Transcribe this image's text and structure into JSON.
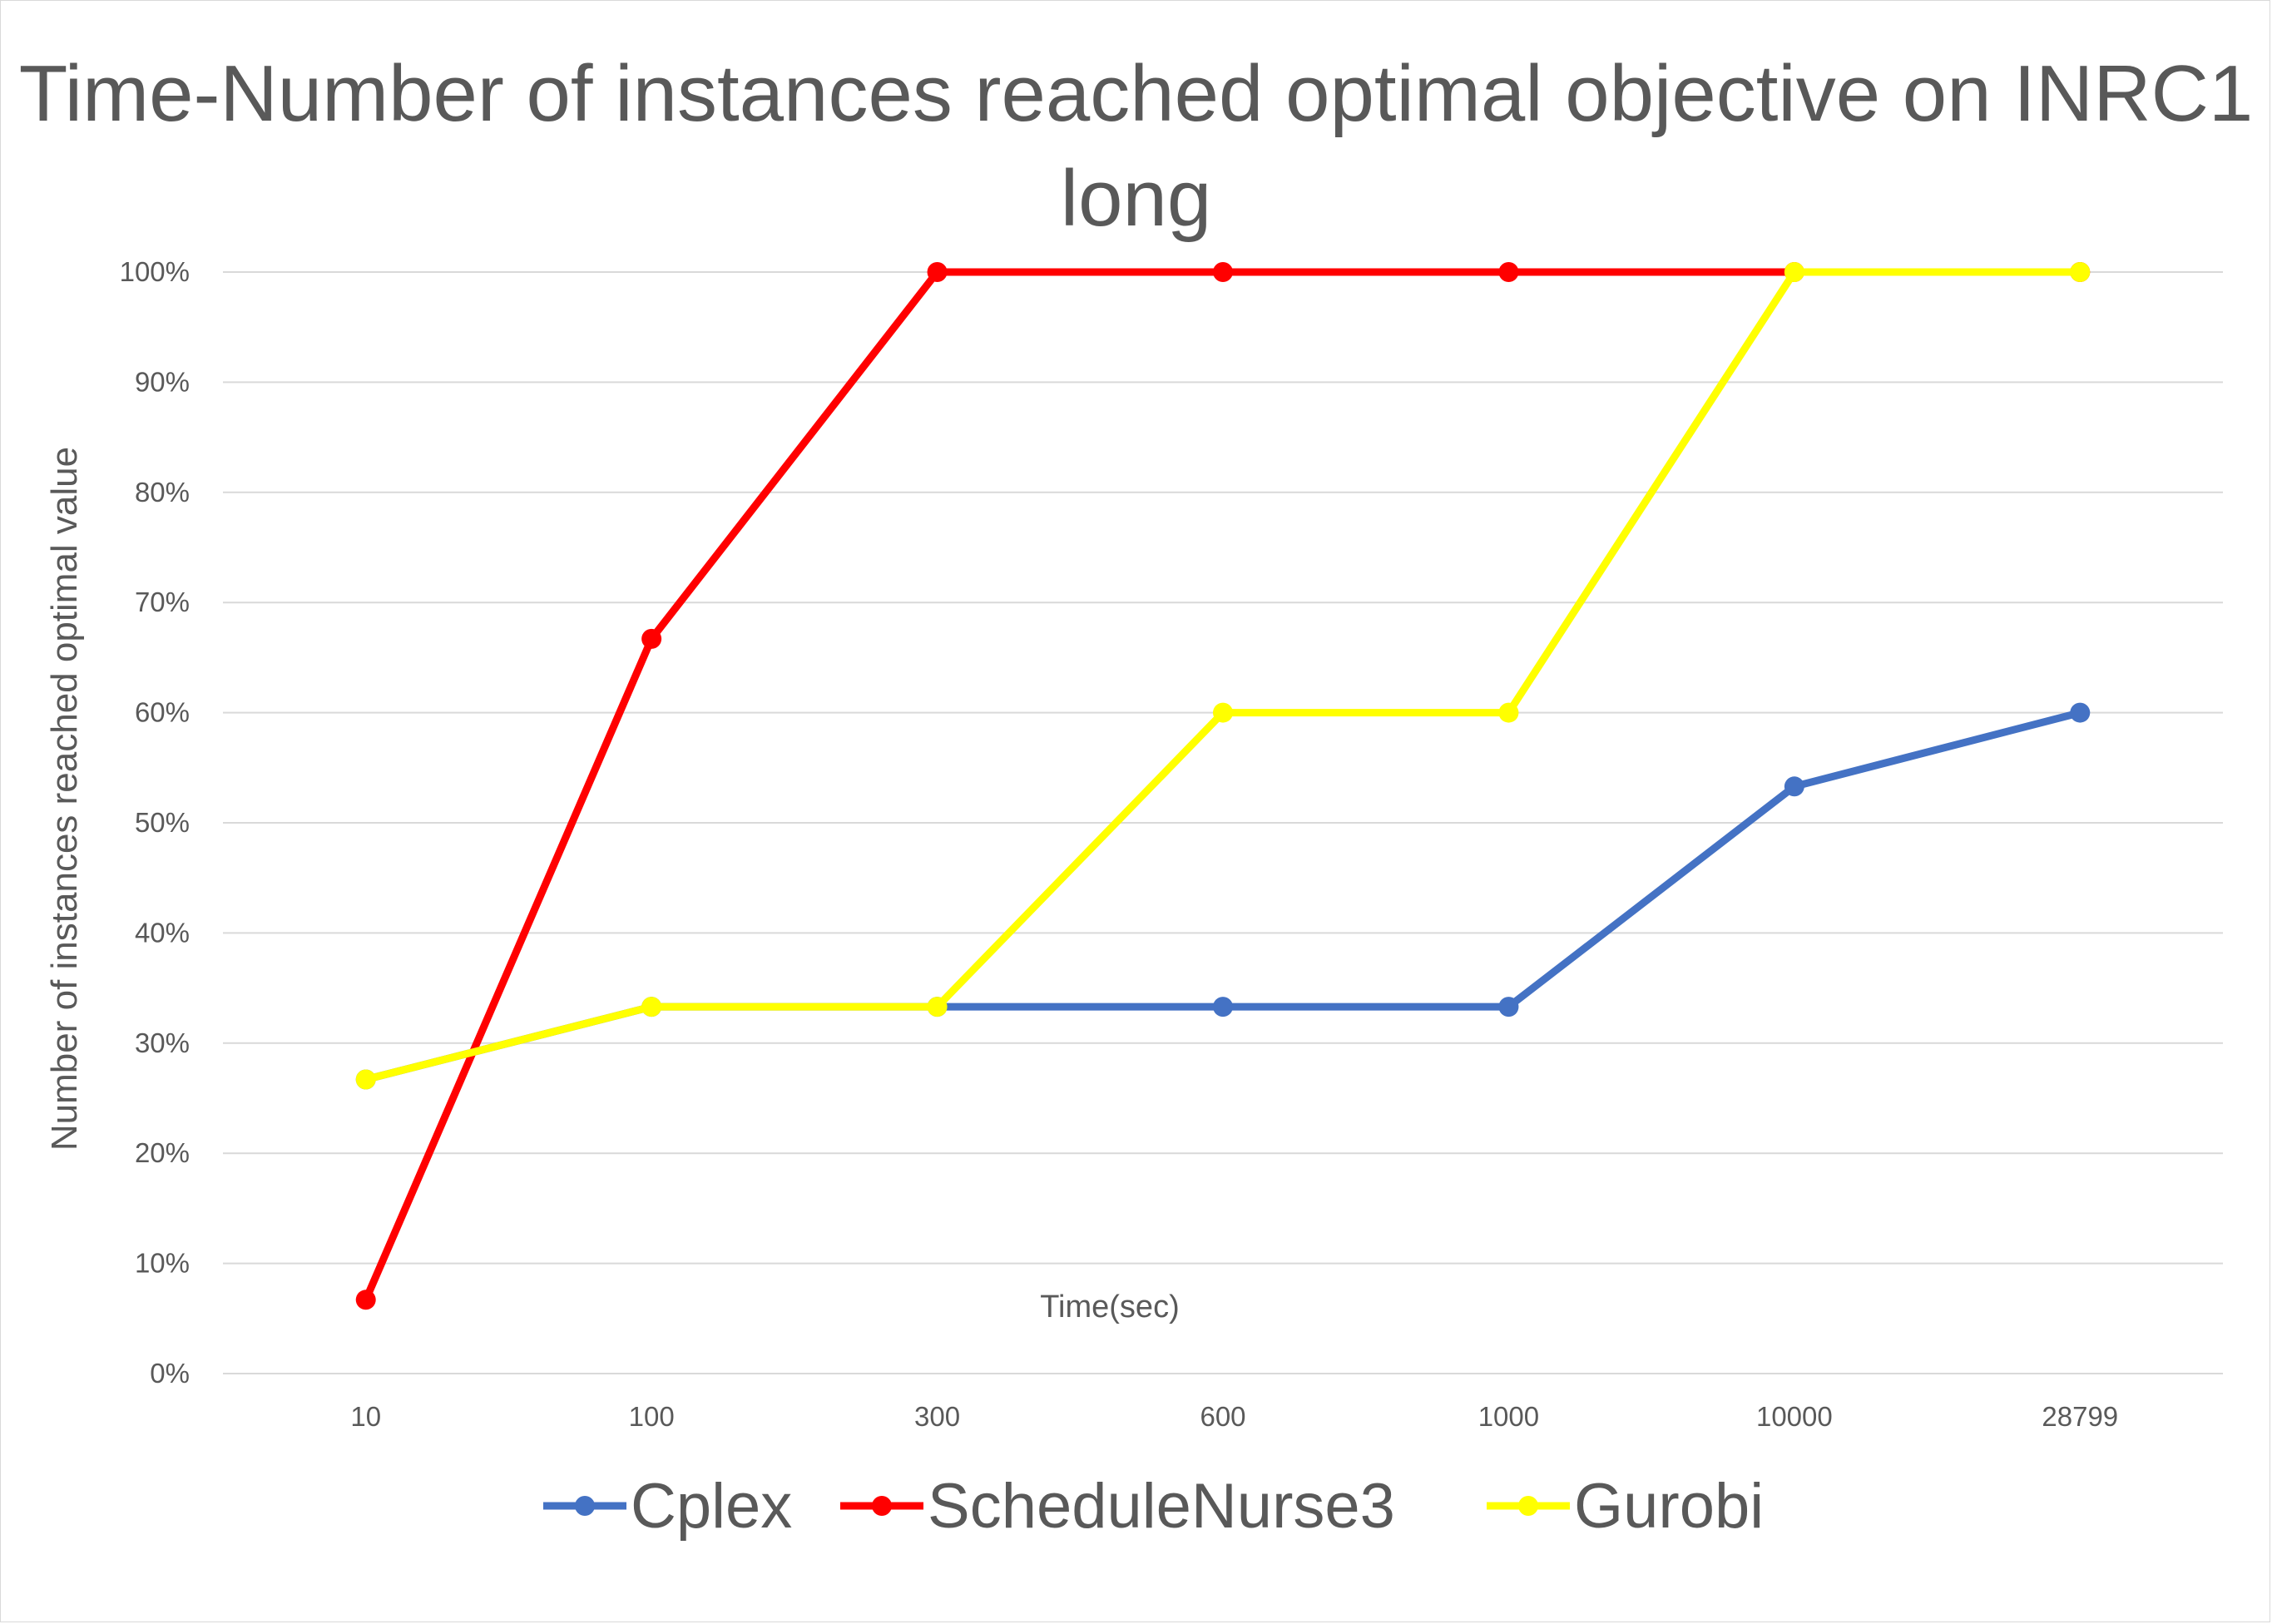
{
  "chart_data": {
    "type": "line",
    "title": "Time-Number of instances reached optimal objective on INRC1 long",
    "xlabel": "Time(sec)",
    "ylabel": "Number of instances reached optimal value",
    "categories": [
      "10",
      "100",
      "300",
      "600",
      "1000",
      "10000",
      "28799"
    ],
    "ylim": [
      0,
      100
    ],
    "y_ticks": [
      "0%",
      "10%",
      "20%",
      "30%",
      "40%",
      "50%",
      "60%",
      "70%",
      "80%",
      "90%",
      "100%"
    ],
    "y_unit": "%",
    "grid": true,
    "legend_position": "bottom",
    "series": [
      {
        "name": "Cplex",
        "color": "#4472c4",
        "values": [
          26.7,
          33.3,
          33.3,
          33.3,
          33.3,
          53.3,
          60
        ]
      },
      {
        "name": "ScheduleNurse3",
        "color": "#ff0000",
        "values": [
          6.7,
          66.7,
          100,
          100,
          100,
          100,
          100
        ]
      },
      {
        "name": "Gurobi",
        "color": "#ffff00",
        "values": [
          26.7,
          33.3,
          33.3,
          60,
          60,
          100,
          100
        ]
      }
    ]
  }
}
